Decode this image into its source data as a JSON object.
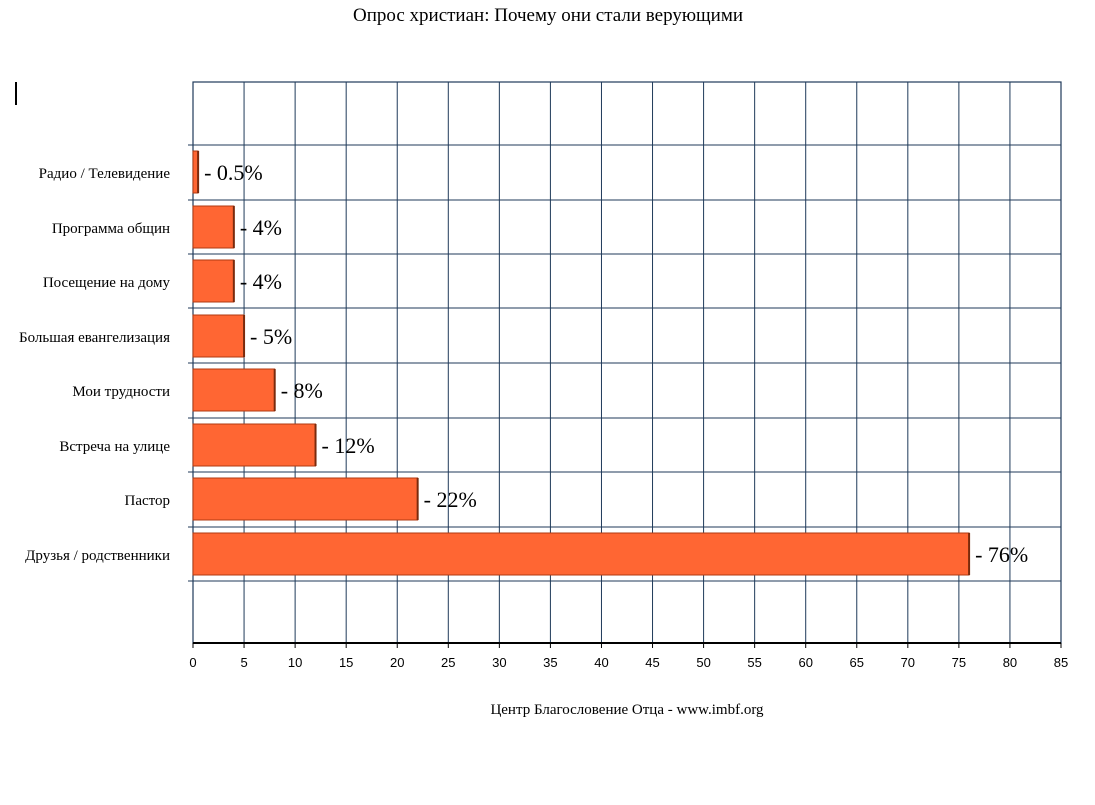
{
  "chart_data": {
    "type": "bar",
    "orientation": "horizontal",
    "title": "Опрос христиан: Почему они стали верующими",
    "source": "Центр Благословение Отца - www.imbf.org",
    "categories": [
      "Радио / Телевидение",
      "Программа общин",
      "Посещение на дому",
      "Большая евангелизация",
      "Мои трудности",
      "Встреча на улице",
      "Пастор",
      "Друзья / родственники"
    ],
    "values": [
      0.5,
      4,
      4,
      5,
      8,
      12,
      22,
      76
    ],
    "value_labels": [
      "- 0.5%",
      "- 4%",
      "- 4%",
      "- 5%",
      "- 8%",
      "- 12%",
      "- 22%",
      "- 76%"
    ],
    "x_ticks": [
      "0",
      "5",
      "10",
      "15",
      "20",
      "25",
      "30",
      "35",
      "40",
      "45",
      "50",
      "55",
      "60",
      "65",
      "70",
      "75",
      "80",
      "85"
    ],
    "xlim": [
      0,
      85
    ],
    "grid": true,
    "colors": {
      "bar_fill": "#ff6633",
      "bar_stroke": "#b23a10",
      "grid": "#1f3a5a",
      "axis": "#000000"
    }
  }
}
